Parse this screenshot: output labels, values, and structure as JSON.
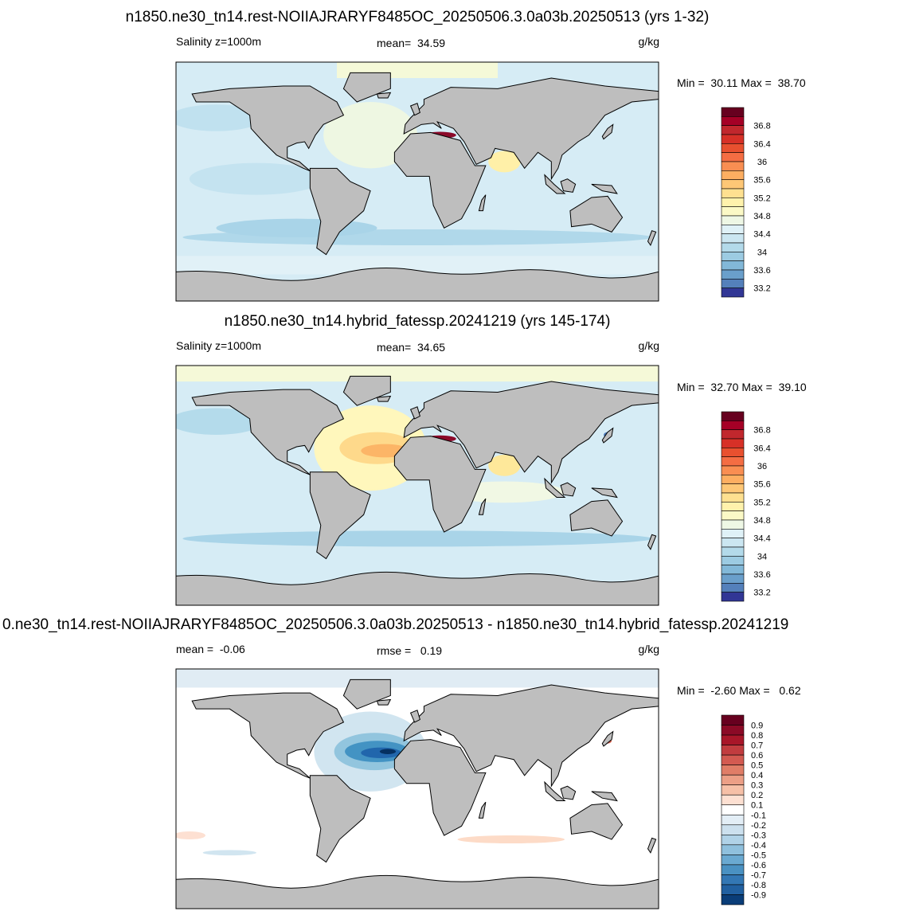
{
  "panels": [
    {
      "title": "n1850.ne30_tn14.rest-NOIIAJRARYF8485OC_20250506.3.0a03b.20250513 (yrs 1-32)",
      "field_label": "Salinity z=1000m",
      "stat_label": "mean=  34.59",
      "units": "g/kg",
      "minmax": "Min =  30.11 Max =  38.70",
      "colorbar": {
        "labels": [
          36.8,
          36.4,
          36,
          35.6,
          35.2,
          34.8,
          34.4,
          34,
          33.6,
          33.2
        ],
        "colors": [
          "#67001f",
          "#a50026",
          "#c1272d",
          "#d73027",
          "#e8502f",
          "#f46d43",
          "#f98e52",
          "#fdae61",
          "#fec776",
          "#fee090",
          "#fff2ac",
          "#fbf9c6",
          "#eef7e5",
          "#dff1f7",
          "#cbe6f1",
          "#b3daea",
          "#9ccbe2",
          "#82b8d8",
          "#6a9fcb",
          "#5480bb",
          "#313695"
        ]
      }
    },
    {
      "title": "n1850.ne30_tn14.hybrid_fatessp.20241219 (yrs 145-174)",
      "field_label": "Salinity z=1000m",
      "stat_label": "mean=  34.65",
      "units": "g/kg",
      "minmax": "Min =  32.70 Max =  39.10",
      "colorbar": {
        "labels": [
          36.8,
          36.4,
          36,
          35.6,
          35.2,
          34.8,
          34.4,
          34,
          33.6,
          33.2
        ],
        "colors": [
          "#67001f",
          "#a50026",
          "#c1272d",
          "#d73027",
          "#e8502f",
          "#f46d43",
          "#f98e52",
          "#fdae61",
          "#fec776",
          "#fee090",
          "#fff2ac",
          "#fbf9c6",
          "#eef7e5",
          "#dff1f7",
          "#cbe6f1",
          "#b3daea",
          "#9ccbe2",
          "#82b8d8",
          "#6a9fcb",
          "#5480bb",
          "#313695"
        ]
      }
    },
    {
      "title": "0.ne30_tn14.rest-NOIIAJRARYF8485OC_20250506.3.0a03b.20250513 - n1850.ne30_tn14.hybrid_fatessp.20241219",
      "field_label": "mean =  -0.06",
      "stat_label": "rmse =   0.19",
      "units": "g/kg",
      "minmax": "Min =  -2.60 Max =   0.62",
      "colorbar": {
        "labels": [
          0.9,
          0.8,
          0.7,
          0.6,
          0.5,
          0.4,
          0.3,
          0.2,
          0.1,
          -0.1,
          -0.2,
          -0.3,
          -0.4,
          -0.5,
          -0.6,
          -0.7,
          -0.8,
          -0.9
        ],
        "colors": [
          "#67001f",
          "#8b0a26",
          "#a81629",
          "#c13c3f",
          "#d35a51",
          "#e07d67",
          "#ec9f86",
          "#f6c0a7",
          "#fde0d2",
          "#ffffff",
          "#e3eef6",
          "#cce0ee",
          "#b0d2e7",
          "#8fc0dd",
          "#6aa9d1",
          "#4a91c2",
          "#3377b4",
          "#2160a0",
          "#0a3d78"
        ]
      }
    }
  ]
}
